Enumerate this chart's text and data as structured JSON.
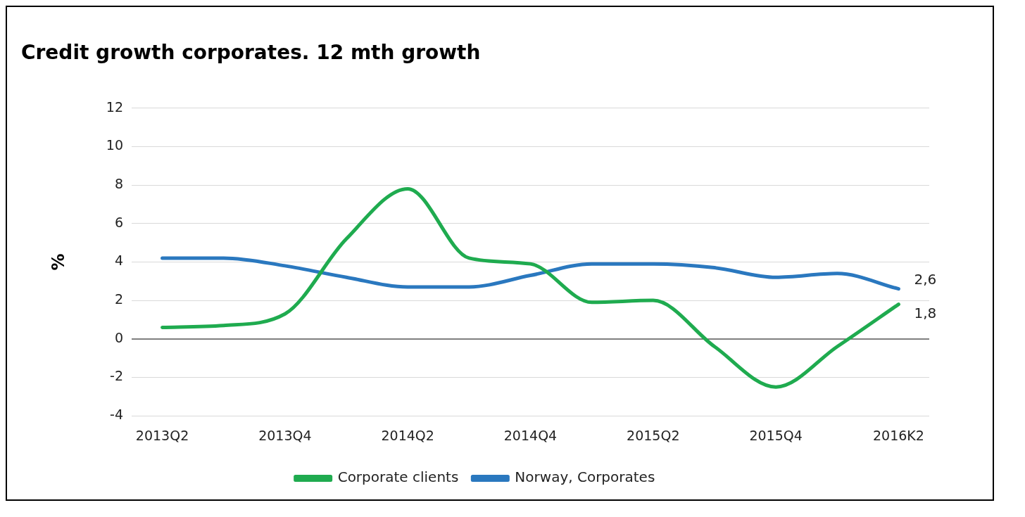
{
  "chart_data": {
    "type": "line",
    "title": "Credit growth corporates. 12 mth growth",
    "ylabel": "%",
    "categories": [
      "2013Q2",
      null,
      "2013Q4",
      null,
      "2014Q2",
      null,
      "2014Q4",
      null,
      "2015Q2",
      null,
      "2015Q4",
      null,
      "2016K2"
    ],
    "series": [
      {
        "name": "Corporate clients",
        "color": "#1fab4f",
        "values": [
          0.6,
          0.7,
          1.3,
          5.2,
          7.8,
          4.2,
          3.9,
          1.9,
          2.0,
          -0.4,
          -2.5,
          -0.4,
          1.8
        ],
        "value_labels": [
          null,
          null,
          null,
          null,
          null,
          null,
          null,
          null,
          null,
          null,
          null,
          null,
          "1,8"
        ]
      },
      {
        "name": "Norway, Corporates",
        "color": "#2a78bf",
        "values": [
          4.2,
          4.2,
          3.8,
          3.2,
          2.7,
          2.7,
          3.3,
          3.9,
          3.9,
          3.7,
          3.2,
          3.4,
          2.6
        ],
        "value_labels": [
          null,
          null,
          null,
          null,
          null,
          null,
          null,
          null,
          null,
          null,
          null,
          null,
          "2,6"
        ]
      }
    ],
    "ylim": [
      -4,
      12
    ],
    "yticks": [
      -4,
      -2,
      0,
      2,
      4,
      6,
      8,
      10,
      12
    ],
    "grid": "y",
    "legend": "bottom",
    "marker": "none",
    "line_style": "solid"
  }
}
